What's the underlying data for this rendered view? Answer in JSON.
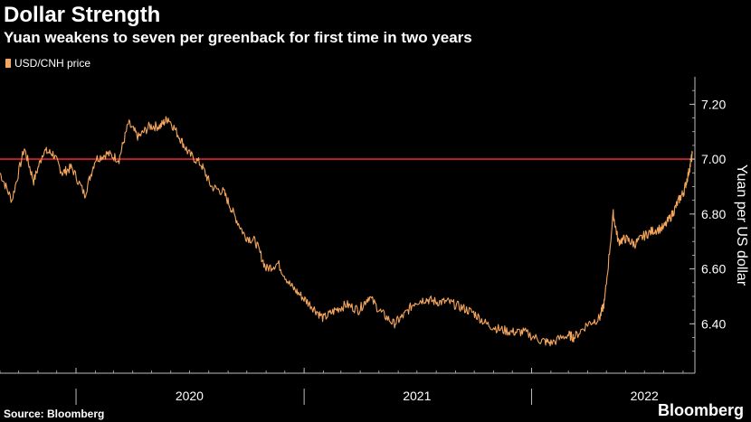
{
  "header": {
    "title": "Dollar Strength",
    "subtitle": "Yuan weakens to seven per greenback for first time in two years"
  },
  "footer": {
    "source": "Source: Bloomberg",
    "brand": "Bloomberg"
  },
  "colors": {
    "background": "#000000",
    "series": "#f5a55c",
    "reference_line": "#e0242b",
    "axis": "#bbbbbb"
  },
  "chart_data": {
    "type": "line",
    "title": "Dollar Strength",
    "subtitle": "Yuan weakens to seven per greenback for first time in two years",
    "xlabel": "",
    "ylabel": "Yuan per US dollar",
    "y_axis_position": "right",
    "ylim": [
      6.22,
      7.3
    ],
    "y_ticks": [
      6.4,
      6.6,
      6.8,
      7.0,
      7.2
    ],
    "y_tick_labels": [
      "6.40",
      "6.60",
      "6.80",
      "7.00",
      "7.20"
    ],
    "xlim": [
      "2019-09-01",
      "2022-09-20"
    ],
    "x_tick_labels": [
      "2020",
      "2021",
      "2022"
    ],
    "x_label_dates": [
      "2020-07-01",
      "2021-07-01",
      "2022-07-01"
    ],
    "year_boundaries": [
      "2020-01-01",
      "2021-01-01",
      "2022-01-01"
    ],
    "reference_lines": [
      {
        "axis": "y",
        "value": 7.0
      }
    ],
    "legend": {
      "position": "top-left",
      "entries": [
        "USD/CNH price"
      ]
    },
    "grid": false,
    "series": [
      {
        "name": "USD/CNH price",
        "x": [
          "2019-09-01",
          "2019-09-20",
          "2019-10-10",
          "2019-10-25",
          "2019-11-10",
          "2019-11-25",
          "2019-12-10",
          "2019-12-25",
          "2020-01-15",
          "2020-02-01",
          "2020-02-20",
          "2020-03-10",
          "2020-03-25",
          "2020-04-10",
          "2020-04-28",
          "2020-05-15",
          "2020-05-28",
          "2020-06-15",
          "2020-06-30",
          "2020-07-20",
          "2020-08-05",
          "2020-08-25",
          "2020-09-10",
          "2020-09-28",
          "2020-10-15",
          "2020-11-01",
          "2020-11-20",
          "2020-12-10",
          "2020-12-28",
          "2021-01-15",
          "2021-02-01",
          "2021-02-20",
          "2021-03-10",
          "2021-03-30",
          "2021-04-15",
          "2021-05-05",
          "2021-05-25",
          "2021-06-10",
          "2021-06-28",
          "2021-07-15",
          "2021-08-01",
          "2021-08-20",
          "2021-09-10",
          "2021-09-30",
          "2021-10-20",
          "2021-11-10",
          "2021-12-01",
          "2021-12-20",
          "2022-01-15",
          "2022-02-01",
          "2022-02-28",
          "2022-03-10",
          "2022-04-01",
          "2022-04-20",
          "2022-04-28",
          "2022-05-12",
          "2022-05-20",
          "2022-06-01",
          "2022-06-15",
          "2022-06-30",
          "2022-07-15",
          "2022-08-01",
          "2022-08-15",
          "2022-08-25",
          "2022-09-02",
          "2022-09-10",
          "2022-09-16"
        ],
        "y": [
          6.95,
          6.85,
          7.04,
          6.92,
          7.03,
          7.02,
          6.95,
          6.97,
          6.87,
          7.0,
          7.02,
          7.0,
          7.13,
          7.08,
          7.12,
          7.12,
          7.15,
          7.08,
          7.02,
          6.98,
          6.9,
          6.88,
          6.8,
          6.72,
          6.7,
          6.6,
          6.62,
          6.54,
          6.5,
          6.46,
          6.42,
          6.45,
          6.47,
          6.45,
          6.5,
          6.44,
          6.4,
          6.43,
          6.48,
          6.49,
          6.48,
          6.48,
          6.46,
          6.44,
          6.4,
          6.38,
          6.37,
          6.37,
          6.34,
          6.33,
          6.36,
          6.35,
          6.4,
          6.42,
          6.48,
          6.8,
          6.7,
          6.71,
          6.69,
          6.72,
          6.74,
          6.75,
          6.8,
          6.85,
          6.88,
          6.95,
          7.02
        ]
      }
    ]
  }
}
